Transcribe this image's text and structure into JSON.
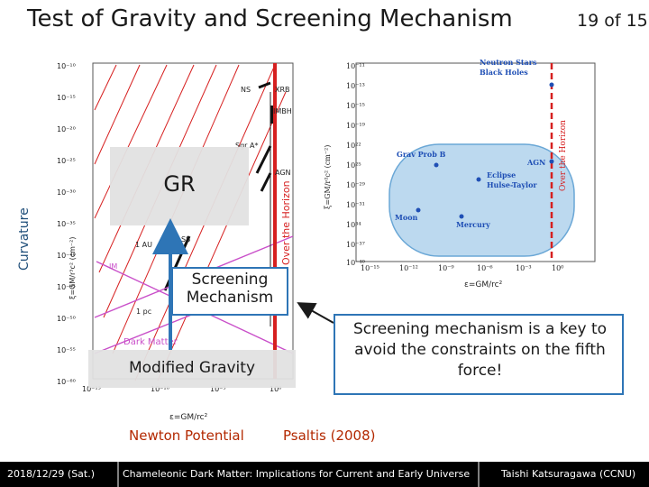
{
  "slide": {
    "title": "Test of Gravity and Screening Mechanism",
    "page_number": "19 of 15"
  },
  "left_plot": {
    "y_axis_label": "ξ=GM/r³c² (cm⁻²)",
    "x_axis_label": "ε=GM/rc²",
    "y_ticks": [
      "10⁻¹⁰",
      "10⁻¹⁵",
      "10⁻²⁰",
      "10⁻²⁵",
      "10⁻³⁰",
      "10⁻³⁵",
      "10⁻⁴⁰",
      "10⁻⁴⁵",
      "10⁻⁵⁰",
      "10⁻⁵⁵",
      "10⁻⁶⁰"
    ],
    "x_ticks": [
      "10⁻¹⁵",
      "10⁻¹⁰",
      "10⁻⁵",
      "10⁰"
    ],
    "labels": {
      "ns": "NS",
      "xrb": "XRB",
      "imbh": "IMBH",
      "sgr": "Sgr A*",
      "agn": "AGN",
      "ss": "SS",
      "au": "1 AU",
      "pc": "1 pc",
      "im": "IM",
      "horizon": "Over the Horizon",
      "dark_matter": "Dark Matter"
    },
    "colors": {
      "horizon_line": "#d62020",
      "dark_matter": "#c94fc9",
      "lines": "#d61f1f",
      "dark_points": "#111111"
    }
  },
  "right_plot": {
    "y_axis_label": "ξ=GM/r³c² (cm⁻²)",
    "x_axis_label": "ε=GM/rc²",
    "y_ticks": [
      "10⁻¹¹",
      "10⁻¹³",
      "10⁻¹⁵",
      "10⁻¹⁹",
      "10²²",
      "10²⁵",
      "10⁻²⁹",
      "10⁻³¹",
      "10³⁴",
      "10⁻³⁷",
      "10⁻⁴⁰"
    ],
    "x_ticks": [
      "10⁻¹⁵",
      "10⁻¹²",
      "10⁻⁹",
      "10⁻⁶",
      "10⁻³",
      "10⁰"
    ],
    "points": [
      {
        "label": "Neutron Stars\nBlack Holes"
      },
      {
        "label": "Grav Prob B"
      },
      {
        "label": "AGN"
      },
      {
        "label": "Eclipse\nHulse-Taylor"
      },
      {
        "label": "Moon"
      },
      {
        "label": "Mercury"
      }
    ],
    "horizon_label": "Over the Horizon",
    "colors": {
      "region_fill": "#bcd9ef",
      "region_stroke": "#6aa7d6",
      "points": "#1f4fb5",
      "horizon": "#d62020"
    }
  },
  "annotations": {
    "curvature": "Curvature",
    "gr": "GR",
    "screening": "Screening\nMechanism",
    "modified_gravity": "Modified Gravity",
    "note": "Screening mechanism is a key to avoid the constraints on the fifth force!",
    "newton_potential": "Newton Potential",
    "citation": "Psaltis (2008)"
  },
  "footer": {
    "date": "2018/12/29 (Sat.)",
    "talk_title": "Chameleonic Dark Matter: Implications for Current and Early Universe",
    "author": "Taishi Katsuragawa (CCNU)"
  },
  "theme": {
    "accent_blue": "#2e75b6",
    "accent_orange": "#b32800",
    "footer_bg": "#000000"
  }
}
